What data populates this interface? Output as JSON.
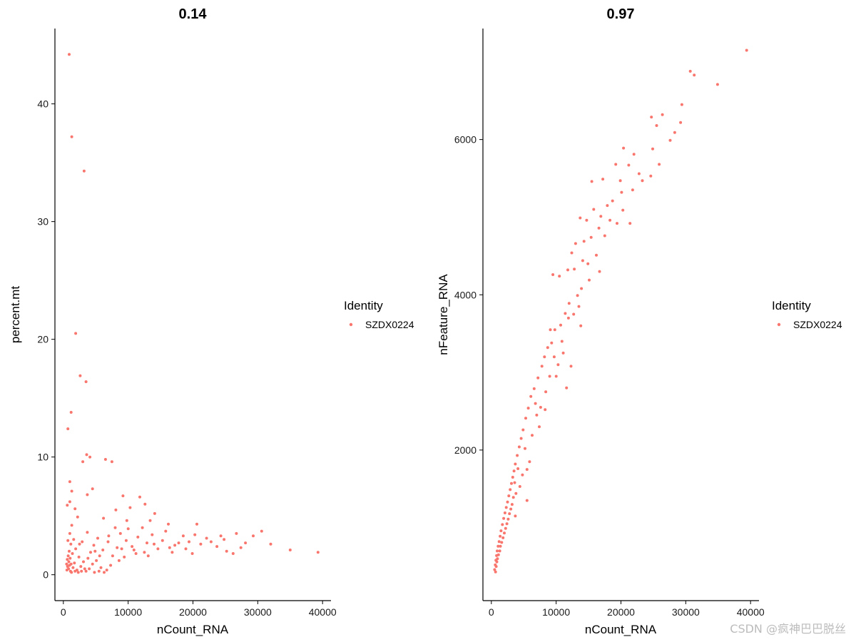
{
  "watermark": "CSDN @疯神巴巴脱丝",
  "colors": {
    "point": "#F8766D",
    "axis": "#000000"
  },
  "chart_data": [
    {
      "type": "scatter",
      "title": "0.14",
      "xlabel": "nCount_RNA",
      "ylabel": "percent.mt",
      "xlim": [
        -1300,
        41300
      ],
      "ylim": [
        -2.2,
        46.4
      ],
      "xticks": [
        0,
        10000,
        20000,
        30000,
        40000
      ],
      "yticks": [
        0,
        10,
        20,
        30,
        40
      ],
      "legend": {
        "title": "Identity",
        "entries": [
          "SZDX0224"
        ],
        "placement": "right"
      },
      "grid": false,
      "series": [
        {
          "name": "SZDX0224",
          "points": [
            [
              900,
              44.2
            ],
            [
              1300,
              37.2
            ],
            [
              3200,
              34.3
            ],
            [
              1900,
              20.5
            ],
            [
              2600,
              16.9
            ],
            [
              3500,
              16.4
            ],
            [
              1200,
              13.8
            ],
            [
              700,
              12.4
            ],
            [
              3600,
              10.2
            ],
            [
              4100,
              10.0
            ],
            [
              3000,
              9.6
            ],
            [
              6500,
              9.8
            ],
            [
              7500,
              9.6
            ],
            [
              1000,
              7.9
            ],
            [
              1300,
              7.1
            ],
            [
              4500,
              7.3
            ],
            [
              3700,
              6.8
            ],
            [
              9200,
              6.7
            ],
            [
              11800,
              6.6
            ],
            [
              12600,
              6.0
            ],
            [
              1000,
              6.2
            ],
            [
              600,
              5.9
            ],
            [
              1800,
              5.6
            ],
            [
              8100,
              5.5
            ],
            [
              10300,
              5.7
            ],
            [
              14100,
              5.2
            ],
            [
              2200,
              4.9
            ],
            [
              6200,
              4.8
            ],
            [
              9800,
              4.6
            ],
            [
              13400,
              4.6
            ],
            [
              16200,
              4.3
            ],
            [
              20600,
              4.3
            ],
            [
              24800,
              3.0
            ],
            [
              26700,
              3.5
            ],
            [
              29300,
              3.3
            ],
            [
              30600,
              3.7
            ],
            [
              32000,
              2.6
            ],
            [
              35000,
              2.1
            ],
            [
              39300,
              1.9
            ],
            [
              22100,
              3.1
            ],
            [
              23700,
              2.4
            ],
            [
              27400,
              2.3
            ],
            [
              18500,
              3.3
            ],
            [
              19400,
              2.8
            ],
            [
              17200,
              2.5
            ],
            [
              15300,
              2.9
            ],
            [
              14600,
              2.2
            ],
            [
              13700,
              3.4
            ],
            [
              12900,
              2.7
            ],
            [
              11500,
              3.2
            ],
            [
              10600,
              2.4
            ],
            [
              9700,
              2.9
            ],
            [
              8800,
              3.5
            ],
            [
              8300,
              2.3
            ],
            [
              7600,
              1.6
            ],
            [
              6900,
              2.8
            ],
            [
              6100,
              2.1
            ],
            [
              5300,
              3.1
            ],
            [
              4700,
              2.5
            ],
            [
              4200,
              1.9
            ],
            [
              3700,
              3.6
            ],
            [
              2900,
              2.8
            ],
            [
              25200,
              2.0
            ],
            [
              21200,
              2.6
            ],
            [
              19900,
              1.8
            ],
            [
              16800,
              1.9
            ],
            [
              15800,
              3.7
            ],
            [
              13100,
              1.6
            ],
            [
              11200,
              1.8
            ],
            [
              9400,
              1.5
            ],
            [
              8600,
              1.2
            ],
            [
              7300,
              0.8
            ],
            [
              6700,
              0.4
            ],
            [
              5800,
              0.6
            ],
            [
              5100,
              1.2
            ],
            [
              4500,
              0.9
            ],
            [
              4000,
              0.5
            ],
            [
              3500,
              0.3
            ],
            [
              3100,
              1.1
            ],
            [
              2700,
              0.7
            ],
            [
              2400,
              1.5
            ],
            [
              2100,
              0.4
            ],
            [
              1900,
              2.2
            ],
            [
              1700,
              1.0
            ],
            [
              1600,
              3.0
            ],
            [
              1500,
              0.6
            ],
            [
              1400,
              1.8
            ],
            [
              1300,
              4.2
            ],
            [
              1200,
              0.9
            ],
            [
              1150,
              2.6
            ],
            [
              1100,
              0.3
            ],
            [
              1050,
              1.4
            ],
            [
              1000,
              3.5
            ],
            [
              950,
              0.8
            ],
            [
              900,
              2.0
            ],
            [
              850,
              1.1
            ],
            [
              800,
              0.5
            ],
            [
              750,
              1.6
            ],
            [
              700,
              2.9
            ],
            [
              650,
              0.7
            ],
            [
              600,
              1.3
            ],
            [
              550,
              0.4
            ],
            [
              500,
              0.9
            ],
            [
              1250,
              0.2
            ],
            [
              1800,
              0.3
            ],
            [
              2300,
              0.2
            ],
            [
              2800,
              0.3
            ],
            [
              3300,
              0.5
            ],
            [
              6300,
              0.2
            ],
            [
              5500,
              0.3
            ],
            [
              4800,
              0.2
            ],
            [
              2500,
              2.6
            ],
            [
              3800,
              1.4
            ],
            [
              4900,
              2.0
            ],
            [
              5600,
              1.6
            ],
            [
              7000,
              3.3
            ],
            [
              8000,
              4.0
            ],
            [
              9000,
              2.2
            ],
            [
              10000,
              3.9
            ],
            [
              10900,
              2.1
            ],
            [
              12200,
              4.0
            ],
            [
              12500,
              1.9
            ],
            [
              14000,
              2.6
            ],
            [
              16400,
              2.3
            ],
            [
              17800,
              2.7
            ],
            [
              18900,
              2.2
            ],
            [
              20300,
              3.4
            ],
            [
              22800,
              2.8
            ],
            [
              24300,
              3.3
            ],
            [
              28100,
              2.7
            ],
            [
              26200,
              1.8
            ]
          ]
        }
      ]
    },
    {
      "type": "scatter",
      "title": "0.97",
      "xlabel": "nCount_RNA",
      "ylabel": "nFeature_RNA",
      "xlim": [
        -1300,
        41300
      ],
      "ylim": [
        60,
        7430
      ],
      "xticks": [
        0,
        10000,
        20000,
        30000,
        40000
      ],
      "yticks": [
        2000,
        4000,
        6000
      ],
      "legend": {
        "title": "Identity",
        "entries": [
          "SZDX0224"
        ],
        "placement": "right"
      },
      "grid": false,
      "series": [
        {
          "name": "SZDX0224",
          "points": [
            [
              39400,
              7150
            ],
            [
              30700,
              6880
            ],
            [
              31300,
              6830
            ],
            [
              34900,
              6710
            ],
            [
              29400,
              6450
            ],
            [
              26400,
              6320
            ],
            [
              24700,
              6290
            ],
            [
              25500,
              6180
            ],
            [
              29200,
              6220
            ],
            [
              28300,
              6090
            ],
            [
              24900,
              5880
            ],
            [
              27600,
              5990
            ],
            [
              20400,
              5890
            ],
            [
              22000,
              5810
            ],
            [
              25900,
              5680
            ],
            [
              24600,
              5530
            ],
            [
              21200,
              5670
            ],
            [
              19200,
              5680
            ],
            [
              22800,
              5560
            ],
            [
              19900,
              5470
            ],
            [
              15500,
              5460
            ],
            [
              17200,
              5490
            ],
            [
              20100,
              5320
            ],
            [
              21800,
              5350
            ],
            [
              18700,
              5210
            ],
            [
              17900,
              5150
            ],
            [
              16900,
              5010
            ],
            [
              15800,
              5100
            ],
            [
              13700,
              4990
            ],
            [
              14700,
              4960
            ],
            [
              20300,
              5090
            ],
            [
              19400,
              4920
            ],
            [
              16600,
              4860
            ],
            [
              15400,
              4740
            ],
            [
              14300,
              4690
            ],
            [
              13000,
              4660
            ],
            [
              12400,
              4540
            ],
            [
              11800,
              4320
            ],
            [
              10500,
              4240
            ],
            [
              9500,
              4260
            ],
            [
              12800,
              4330
            ],
            [
              14100,
              4440
            ],
            [
              16200,
              4510
            ],
            [
              15100,
              4190
            ],
            [
              13900,
              4080
            ],
            [
              13300,
              3990
            ],
            [
              12000,
              3890
            ],
            [
              11400,
              3760
            ],
            [
              10700,
              3610
            ],
            [
              9800,
              3550
            ],
            [
              9300,
              3380
            ],
            [
              8700,
              3320
            ],
            [
              8200,
              3200
            ],
            [
              7800,
              3080
            ],
            [
              7200,
              2930
            ],
            [
              6600,
              2790
            ],
            [
              6100,
              2690
            ],
            [
              5700,
              2540
            ],
            [
              5300,
              2410
            ],
            [
              4900,
              2260
            ],
            [
              4600,
              2150
            ],
            [
              4300,
              2040
            ],
            [
              4000,
              1930
            ],
            [
              3700,
              1820
            ],
            [
              3500,
              1730
            ],
            [
              3300,
              1650
            ],
            [
              3100,
              1570
            ],
            [
              2900,
              1490
            ],
            [
              2700,
              1410
            ],
            [
              2500,
              1330
            ],
            [
              2300,
              1260
            ],
            [
              2100,
              1190
            ],
            [
              1900,
              1120
            ],
            [
              1700,
              1040
            ],
            [
              1500,
              960
            ],
            [
              1350,
              890
            ],
            [
              1200,
              820
            ],
            [
              1050,
              760
            ],
            [
              900,
              700
            ],
            [
              800,
              640
            ],
            [
              700,
              580
            ],
            [
              600,
              520
            ],
            [
              500,
              460
            ],
            [
              650,
              430
            ],
            [
              11600,
              2800
            ],
            [
              12300,
              3080
            ],
            [
              13800,
              3600
            ],
            [
              11100,
              3250
            ],
            [
              10000,
              2950
            ],
            [
              9100,
              3550
            ],
            [
              8300,
              2520
            ],
            [
              7400,
              2300
            ],
            [
              6800,
              2600
            ],
            [
              6300,
              2190
            ],
            [
              5900,
              1850
            ],
            [
              5500,
              1750
            ],
            [
              5200,
              2020
            ],
            [
              4800,
              1680
            ],
            [
              4400,
              1530
            ],
            [
              4100,
              1760
            ],
            [
              3800,
              1440
            ],
            [
              3600,
              1580
            ],
            [
              3400,
              1390
            ],
            [
              3200,
              1300
            ],
            [
              3000,
              1240
            ],
            [
              2800,
              1180
            ],
            [
              2600,
              1110
            ],
            [
              2400,
              1050
            ],
            [
              2200,
              990
            ],
            [
              2000,
              930
            ],
            [
              1800,
              870
            ],
            [
              1600,
              810
            ],
            [
              1400,
              760
            ],
            [
              1300,
              700
            ],
            [
              1100,
              650
            ],
            [
              950,
              600
            ],
            [
              850,
              560
            ],
            [
              750,
              500
            ],
            [
              5500,
              1350
            ],
            [
              3700,
              1150
            ],
            [
              16700,
              4300
            ],
            [
              17500,
              4760
            ],
            [
              18300,
              4960
            ],
            [
              14900,
              4400
            ],
            [
              13500,
              3850
            ],
            [
              12700,
              3750
            ],
            [
              11900,
              3700
            ],
            [
              10900,
              3400
            ],
            [
              10300,
              3100
            ],
            [
              9700,
              3200
            ],
            [
              9000,
              2950
            ],
            [
              8400,
              2750
            ],
            [
              7600,
              2550
            ],
            [
              7000,
              2450
            ],
            [
              21400,
              4920
            ],
            [
              23300,
              5470
            ]
          ]
        }
      ]
    }
  ]
}
